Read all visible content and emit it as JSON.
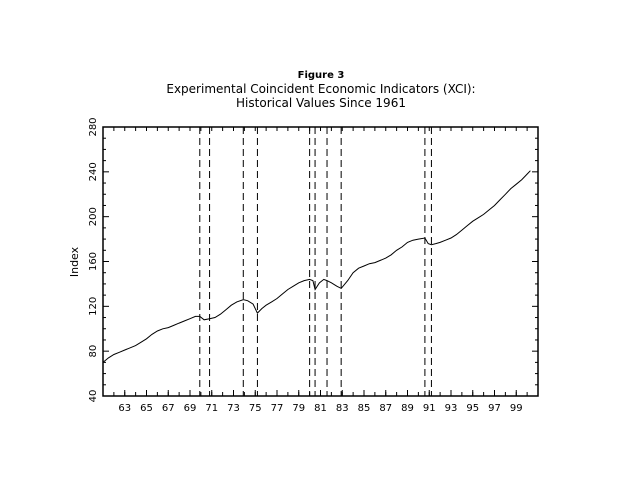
{
  "chart_data": {
    "type": "line",
    "figure_label": "Figure 3",
    "title_line1": "Experimental Coincident Economic Indicators (XCI):",
    "title_line2": "Historical Values Since 1961",
    "xlabel": "",
    "ylabel": "Index",
    "xlim": [
      1961,
      2001
    ],
    "ylim": [
      40,
      280
    ],
    "y_ticks": [
      40,
      80,
      120,
      160,
      200,
      240,
      280
    ],
    "x_ticks": [
      {
        "year": 1963,
        "label": "63"
      },
      {
        "year": 1965,
        "label": "65"
      },
      {
        "year": 1967,
        "label": "67"
      },
      {
        "year": 1969,
        "label": "69"
      },
      {
        "year": 1971,
        "label": "71"
      },
      {
        "year": 1973,
        "label": "73"
      },
      {
        "year": 1975,
        "label": "75"
      },
      {
        "year": 1977,
        "label": "77"
      },
      {
        "year": 1979,
        "label": "79"
      },
      {
        "year": 1981,
        "label": "81"
      },
      {
        "year": 1983,
        "label": "83"
      },
      {
        "year": 1985,
        "label": "85"
      },
      {
        "year": 1987,
        "label": "87"
      },
      {
        "year": 1989,
        "label": "89"
      },
      {
        "year": 1991,
        "label": "91"
      },
      {
        "year": 1993,
        "label": "93"
      },
      {
        "year": 1995,
        "label": "95"
      },
      {
        "year": 1997,
        "label": "97"
      },
      {
        "year": 1999,
        "label": "99"
      }
    ],
    "recession_lines": [
      1969.9,
      1970.8,
      1973.9,
      1975.2,
      1980.0,
      1980.5,
      1981.6,
      1982.9,
      1990.6,
      1991.2
    ],
    "series": [
      {
        "x": [
          1961.0,
          1961.5,
          1962.0,
          1962.5,
          1963.0,
          1963.5,
          1964.0,
          1964.5,
          1965.0,
          1965.5,
          1966.0,
          1966.5,
          1967.0,
          1967.5,
          1968.0,
          1968.5,
          1969.0,
          1969.5,
          1969.9,
          1970.3,
          1970.8,
          1971.3,
          1971.8,
          1972.3,
          1972.8,
          1973.3,
          1973.9,
          1974.3,
          1974.8,
          1975.2,
          1975.6,
          1976.0,
          1976.5,
          1977.0,
          1977.5,
          1978.0,
          1978.5,
          1979.0,
          1979.5,
          1980.0,
          1980.3,
          1980.5,
          1980.9,
          1981.3,
          1981.6,
          1982.0,
          1982.5,
          1982.9,
          1983.5,
          1984.0,
          1984.5,
          1985.0,
          1985.5,
          1986.0,
          1986.5,
          1987.0,
          1987.5,
          1988.0,
          1988.5,
          1989.0,
          1989.5,
          1990.0,
          1990.6,
          1990.9,
          1991.2,
          1991.6,
          1992.0,
          1992.5,
          1993.0,
          1993.5,
          1994.0,
          1994.5,
          1995.0,
          1995.5,
          1996.0,
          1996.5,
          1997.0,
          1997.5,
          1998.0,
          1998.5,
          1999.0,
          1999.5,
          2000.0,
          2000.3
        ],
        "y": [
          70,
          74,
          77,
          79,
          81,
          83,
          85,
          88,
          91,
          95,
          98,
          100,
          101,
          103,
          105,
          107,
          109,
          111,
          111,
          108,
          109,
          110,
          113,
          117,
          121,
          124,
          126,
          125,
          122,
          114,
          118,
          121,
          124,
          127,
          131,
          135,
          138,
          141,
          143,
          144,
          143,
          135,
          141,
          144,
          143,
          141,
          138,
          136,
          143,
          150,
          154,
          156,
          158,
          159,
          161,
          163,
          166,
          170,
          173,
          177,
          179,
          180,
          181,
          176,
          175,
          176,
          177,
          179,
          181,
          184,
          188,
          192,
          196,
          199,
          202,
          206,
          210,
          215,
          220,
          225,
          229,
          233,
          238,
          241
        ]
      }
    ]
  }
}
